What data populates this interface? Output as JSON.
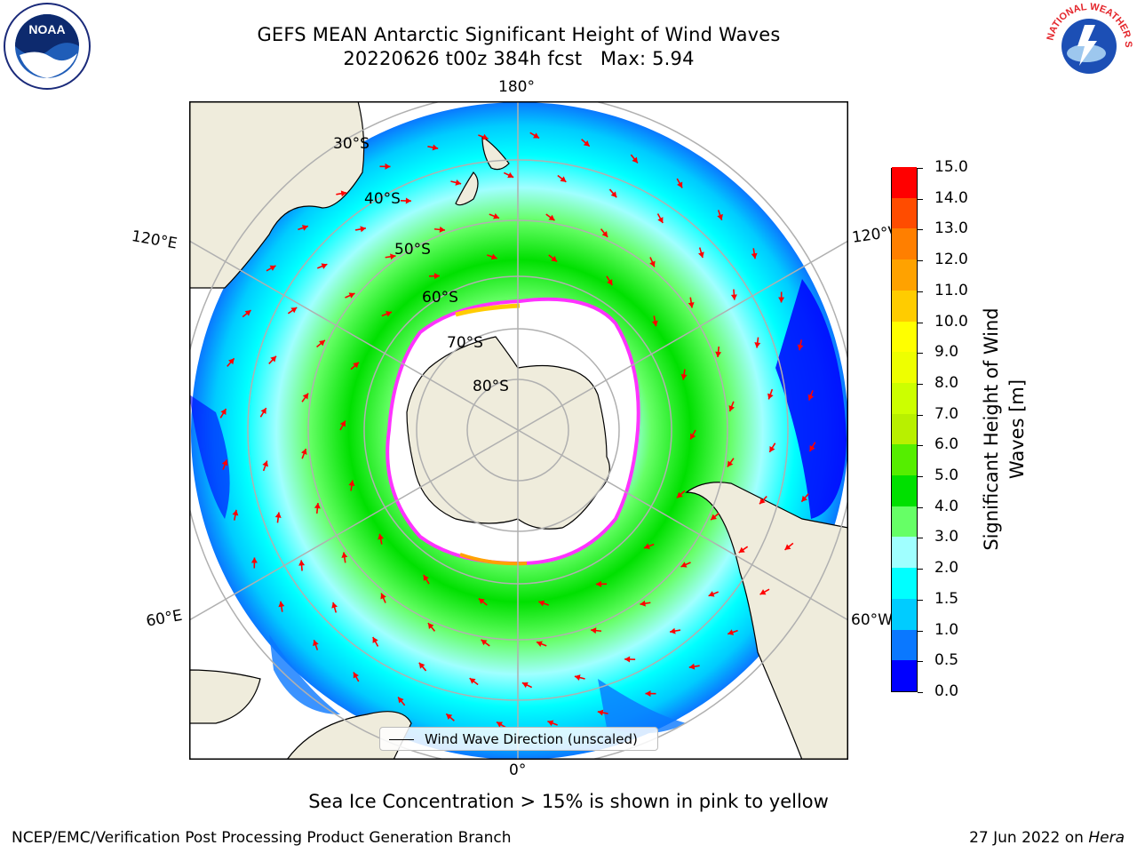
{
  "title": {
    "line1": "GEFS MEAN Antarctic Significant Height of Wind Waves",
    "line2": "20220626 t00z 384h fcst   Max: 5.94"
  },
  "logos": {
    "left": "NOAA",
    "right": "NATIONAL WEATHER SERVICE"
  },
  "map": {
    "projection": "south polar stereographic",
    "longitude_labels": {
      "top": "180°",
      "bottom": "0°",
      "upper_left": "120°E",
      "upper_right": "120°W",
      "lower_left": "60°E",
      "lower_right": "60°W"
    },
    "latitude_labels": [
      "30°S",
      "40°S",
      "50°S",
      "60°S",
      "70°S",
      "80°S"
    ],
    "legend": "Wind Wave Direction (unscaled)",
    "colors": {
      "land": "#efecdc",
      "ice_shelf_white": "#ffffff",
      "sea_ice_edge": "#ff33ff",
      "arrow": "#ff0000",
      "gridline": "#b0b0b0"
    }
  },
  "colorbar": {
    "title": "Significant Height of Wind Waves [m]",
    "tick_labels": [
      "0.0",
      "0.5",
      "1.0",
      "1.5",
      "2.0",
      "3.0",
      "4.0",
      "5.0",
      "6.0",
      "7.0",
      "8.0",
      "9.0",
      "10.0",
      "11.0",
      "12.0",
      "13.0",
      "14.0",
      "15.0"
    ],
    "colors": [
      "#0000ff",
      "#0a78ff",
      "#00ccff",
      "#00ffff",
      "#a0ffff",
      "#66ff66",
      "#00e000",
      "#55ee00",
      "#b8f000",
      "#ccff00",
      "#eeff00",
      "#ffff00",
      "#ffcc00",
      "#ffa200",
      "#ff7f00",
      "#ff4c00",
      "#ff0000"
    ]
  },
  "footer": {
    "note": "Sea Ice Concentration > 15% is shown in pink to yellow",
    "left": "NCEP/EMC/Verification Post Processing Product Generation Branch",
    "right_date": "27 Jun 2022 on ",
    "right_host": "Hera"
  }
}
